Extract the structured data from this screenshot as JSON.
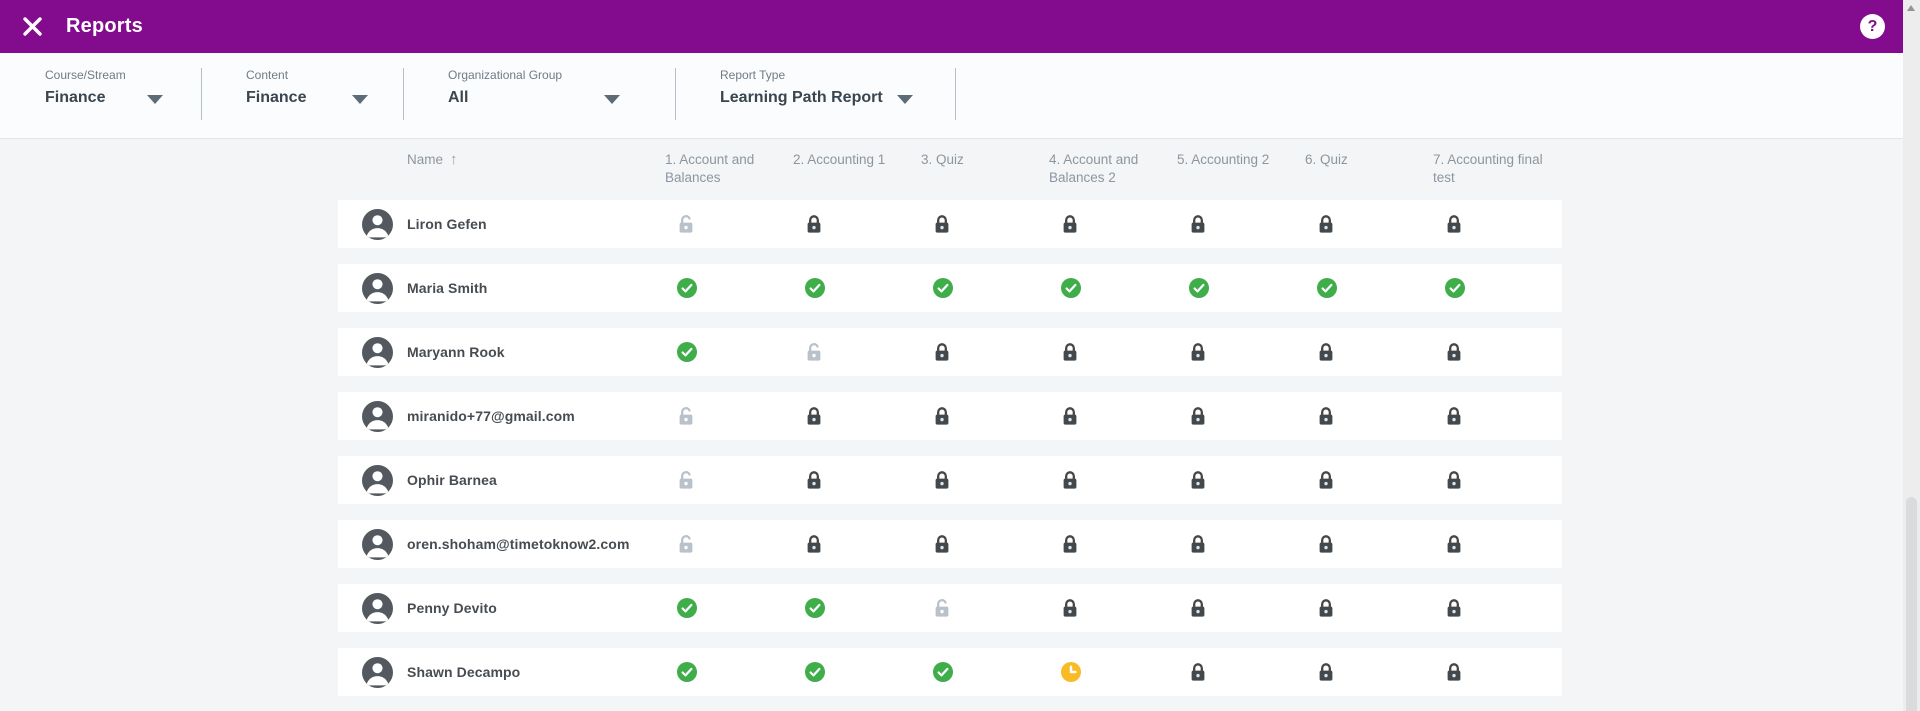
{
  "app_bar": {
    "title": "Reports",
    "help_glyph": "?"
  },
  "filters": [
    {
      "label": "Course/Stream",
      "value": "Finance"
    },
    {
      "label": "Content",
      "value": "Finance"
    },
    {
      "label": "Organizational Group",
      "value": "All"
    },
    {
      "label": "Report Type",
      "value": "Learning Path Report"
    }
  ],
  "table": {
    "name_column": {
      "label": "Name",
      "sort_glyph": "↑",
      "sort": "ascending"
    },
    "status_columns": [
      "1. Account and Balances",
      "2. Accounting 1",
      "3. Quiz",
      "4. Account and Balances 2",
      "5. Accounting 2",
      "6. Quiz",
      "7. Accounting final test"
    ],
    "rows": [
      {
        "name": "Liron Gefen",
        "statuses": [
          "available",
          "locked",
          "locked",
          "locked",
          "locked",
          "locked",
          "locked"
        ]
      },
      {
        "name": "Maria Smith",
        "statuses": [
          "completed",
          "completed",
          "completed",
          "completed",
          "completed",
          "completed",
          "completed"
        ]
      },
      {
        "name": "Maryann Rook",
        "statuses": [
          "completed",
          "available",
          "locked",
          "locked",
          "locked",
          "locked",
          "locked"
        ]
      },
      {
        "name": "miranido+77@gmail.com",
        "statuses": [
          "available",
          "locked",
          "locked",
          "locked",
          "locked",
          "locked",
          "locked"
        ]
      },
      {
        "name": "Ophir Barnea",
        "statuses": [
          "available",
          "locked",
          "locked",
          "locked",
          "locked",
          "locked",
          "locked"
        ]
      },
      {
        "name": "oren.shoham@timetoknow2.com",
        "statuses": [
          "available",
          "locked",
          "locked",
          "locked",
          "locked",
          "locked",
          "locked"
        ]
      },
      {
        "name": "Penny Devito",
        "statuses": [
          "completed",
          "completed",
          "available",
          "locked",
          "locked",
          "locked",
          "locked"
        ]
      },
      {
        "name": "Shawn Decampo",
        "statuses": [
          "completed",
          "completed",
          "completed",
          "in_progress",
          "locked",
          "locked",
          "locked"
        ]
      }
    ]
  },
  "colors": {
    "appbar_purple": "#830b8d",
    "completed_green": "#3fae4a",
    "in_progress_amber": "#f8ba25",
    "locked_dark": "#43484c",
    "available_light": "#b9c2cb",
    "page_background": "#f3f5f6",
    "row_background": "#ffffff"
  }
}
